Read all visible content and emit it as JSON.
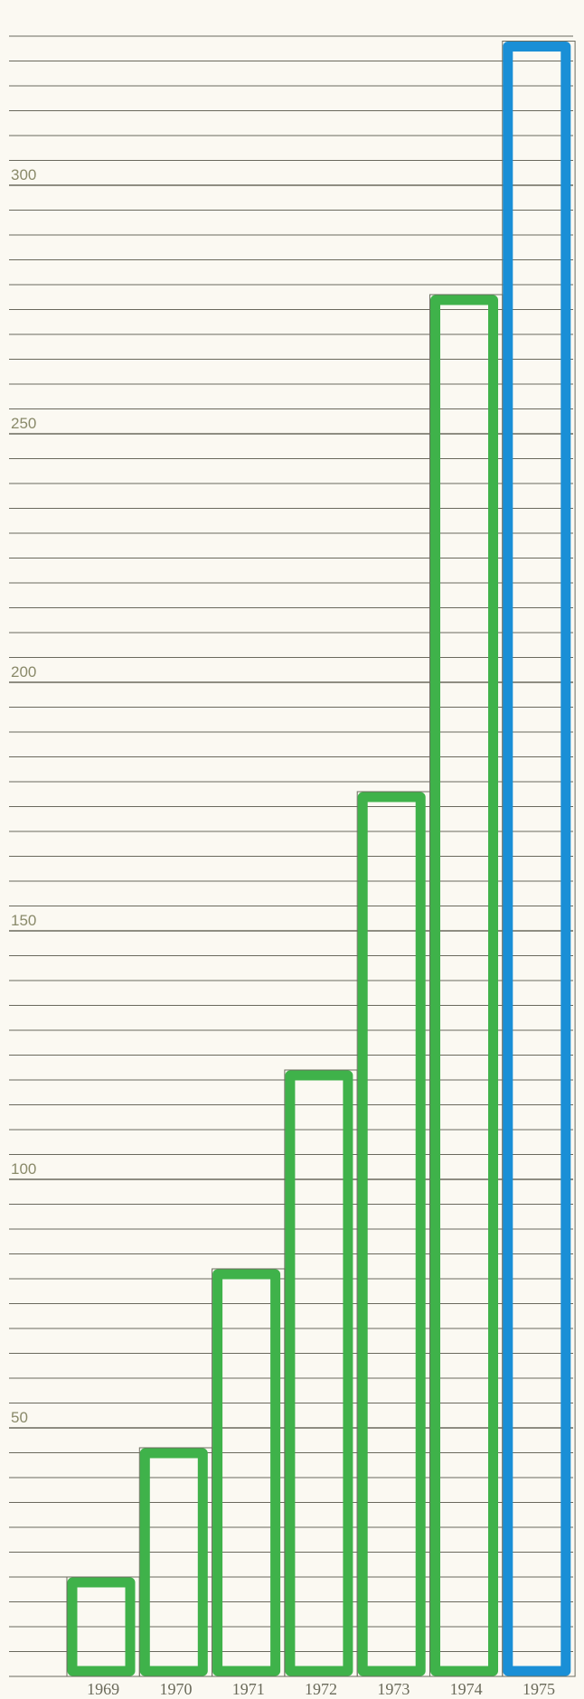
{
  "chart_data": {
    "type": "bar",
    "categories": [
      "1969",
      "1970",
      "1971",
      "1972",
      "1973",
      "1974",
      "1975"
    ],
    "values": [
      20,
      46,
      82,
      122,
      178,
      278,
      329
    ],
    "highlight_index": 6,
    "yticks": [
      50,
      100,
      150,
      200,
      250,
      300
    ],
    "ylim": [
      0,
      330
    ],
    "grid": true,
    "grid_step": 5,
    "colors": {
      "bar": "#3fb24a",
      "highlight": "#1a8fd6",
      "grid": "#3a3a2c",
      "frame": "#6b6b5e"
    }
  }
}
